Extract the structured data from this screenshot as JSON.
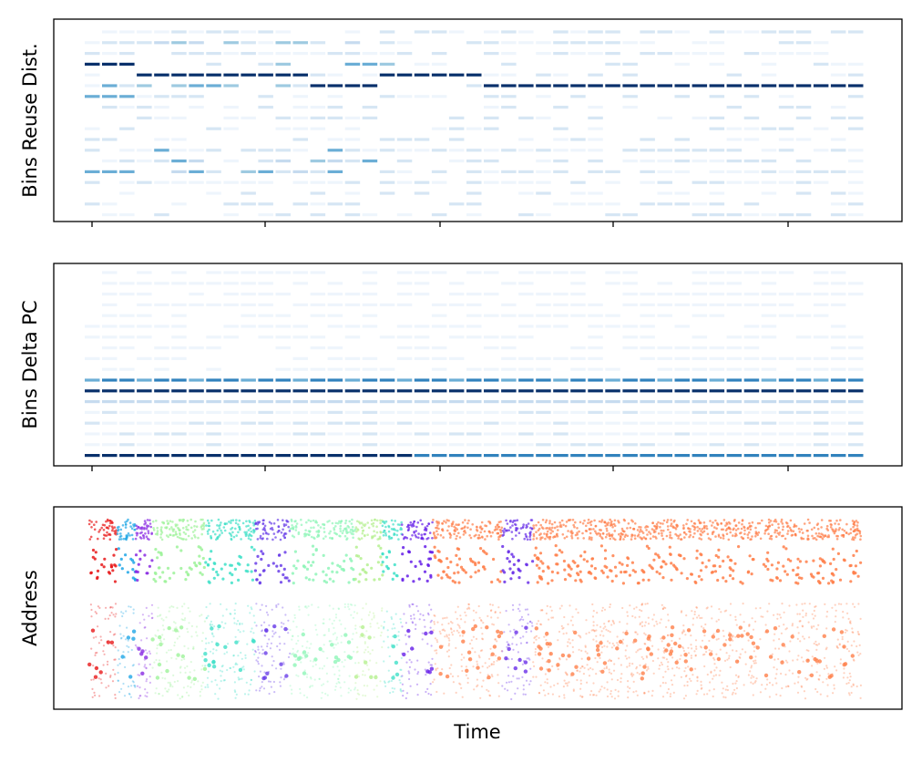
{
  "figure": {
    "ylabel_top": "Bins Reuse Dist.",
    "ylabel_mid": "Bins Delta PC",
    "ylabel_bottom": "Address",
    "xlabel": "Time"
  },
  "chart_data": [
    {
      "type": "heatmap",
      "ylabel": "Bins Reuse Dist.",
      "xlabel": "",
      "colormap": "Blues",
      "columns": 45,
      "rows": 18,
      "x_ticks": 5,
      "hot_row_sequence": [
        14,
        14,
        14,
        13,
        13,
        13,
        13,
        13,
        13,
        13,
        13,
        13,
        13,
        12,
        12,
        12,
        12,
        13,
        13,
        13,
        13,
        13,
        13,
        12,
        12,
        12,
        12,
        12,
        12,
        12,
        12,
        12,
        12,
        12,
        12,
        12,
        12,
        12,
        12,
        12,
        12,
        12,
        12,
        12,
        12
      ]
    },
    {
      "type": "heatmap",
      "ylabel": "Bins Delta PC",
      "xlabel": "",
      "colormap": "Blues",
      "columns": 45,
      "rows": 18,
      "x_ticks": 5,
      "dominant_rows": [
        0,
        6,
        7
      ]
    },
    {
      "type": "scatter",
      "ylabel": "Address",
      "xlabel": "Time",
      "colormap": "rainbow",
      "phases": [
        {
          "start": 0.0,
          "end": 0.035,
          "color": "#e8191a"
        },
        {
          "start": 0.035,
          "end": 0.06,
          "color": "#1fa6e6"
        },
        {
          "start": 0.06,
          "end": 0.082,
          "color": "#8a2be2"
        },
        {
          "start": 0.082,
          "end": 0.15,
          "color": "#9ef29a"
        },
        {
          "start": 0.15,
          "end": 0.215,
          "color": "#40e0c8"
        },
        {
          "start": 0.215,
          "end": 0.26,
          "color": "#6a3ee8"
        },
        {
          "start": 0.26,
          "end": 0.345,
          "color": "#8ff5b8"
        },
        {
          "start": 0.345,
          "end": 0.38,
          "color": "#b5f090"
        },
        {
          "start": 0.38,
          "end": 0.405,
          "color": "#40e0c8"
        },
        {
          "start": 0.405,
          "end": 0.445,
          "color": "#6620e8"
        },
        {
          "start": 0.445,
          "end": 0.535,
          "color": "#ff7f4a"
        },
        {
          "start": 0.535,
          "end": 0.575,
          "color": "#6a30e8"
        },
        {
          "start": 0.575,
          "end": 1.0,
          "color": "#ff7f4a"
        }
      ]
    }
  ]
}
